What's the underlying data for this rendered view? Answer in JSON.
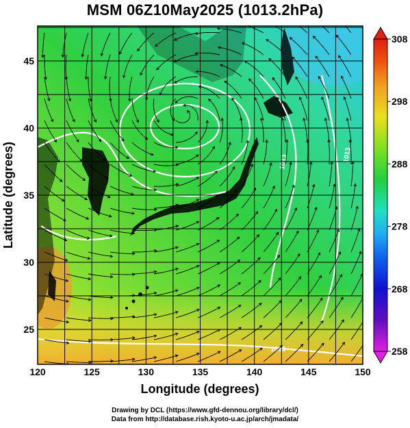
{
  "title": "MSM 06Z10May2025 (1013.2hPa)",
  "axes": {
    "xlabel": "Longitude (degrees)",
    "ylabel": "Latitude  (degrees)",
    "x_ticks": [
      "120",
      "125",
      "130",
      "135",
      "140",
      "145",
      "150"
    ],
    "y_ticks": [
      "45",
      "40",
      "35",
      "30",
      "25"
    ],
    "xlim": [
      120,
      150
    ],
    "ylim": [
      22.4,
      47.6
    ]
  },
  "colorbar": {
    "ticks": [
      "308",
      "298",
      "288",
      "278",
      "268",
      "258"
    ],
    "range": [
      258,
      308
    ],
    "colors": [
      "#e020e0",
      "#6010c0",
      "#1010d0",
      "#1060f0",
      "#20b0f0",
      "#20e0c0",
      "#20d040",
      "#60e020",
      "#c0e020",
      "#f0e020",
      "#f0a020",
      "#f05010",
      "#e02010"
    ]
  },
  "contour_labels": [
    "1013",
    "1013",
    "1013"
  ],
  "credits": {
    "line1": "Drawing by DCL (https://www.gfd-dennou.org/library/dcl/)",
    "line2": "Data from http://database.rish.kyoto-u.ac.jp/arch/jmadata/"
  }
}
